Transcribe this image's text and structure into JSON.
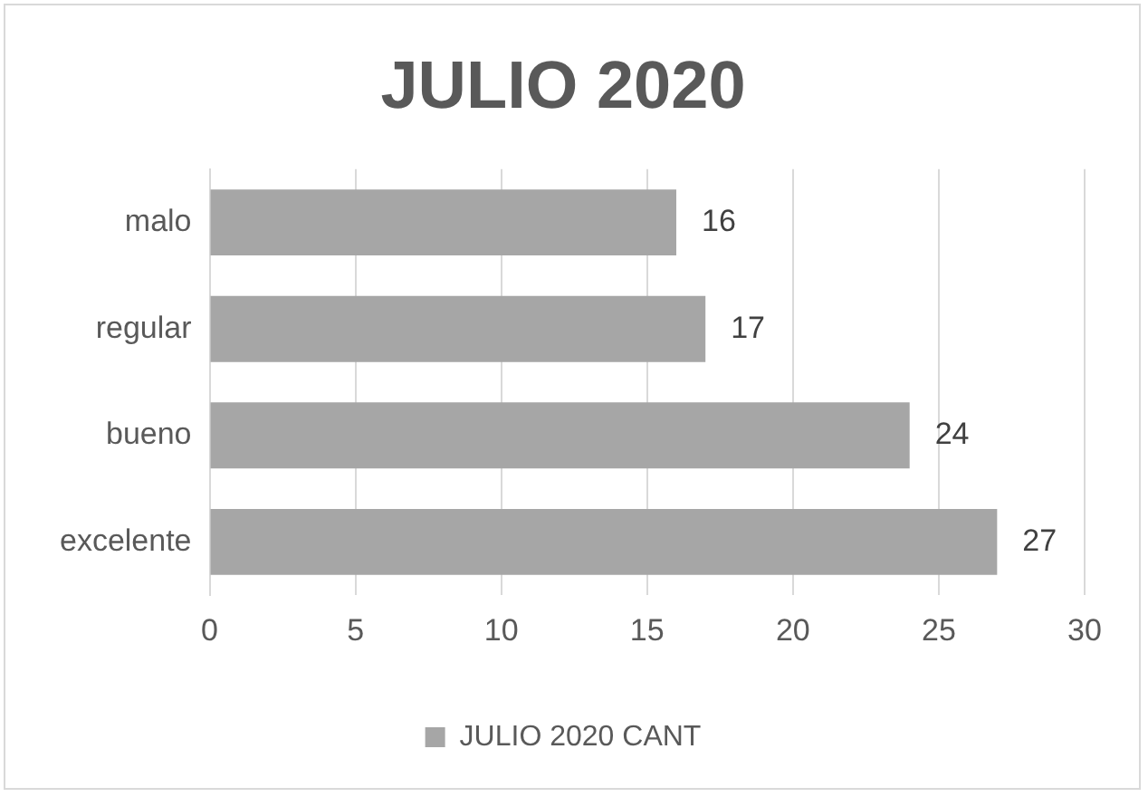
{
  "chart_data": {
    "type": "bar",
    "orientation": "horizontal",
    "title": "JULIO 2020",
    "categories": [
      "malo",
      "regular",
      "bueno",
      "excelente"
    ],
    "series": [
      {
        "name": "JULIO 2020 CANT",
        "color": "#a6a6a6",
        "values": [
          16,
          17,
          24,
          27
        ]
      }
    ],
    "xlim": [
      0,
      30
    ],
    "xticks": [
      0,
      5,
      10,
      15,
      20,
      25,
      30
    ],
    "grid": "x",
    "legend": "bottom",
    "data_labels": true
  }
}
